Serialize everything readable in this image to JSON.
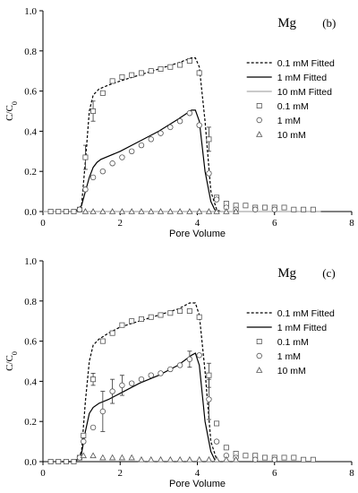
{
  "chart_data": [
    {
      "type": "line",
      "title": "Mg",
      "panel_label": "(b)",
      "xlabel": "Pore Volume",
      "ylabel": "C/C",
      "ylabel_sub": "0",
      "xlim": [
        0,
        8
      ],
      "ylim": [
        0,
        1.0
      ],
      "xticks": [
        "0",
        "2",
        "4",
        "6",
        "8"
      ],
      "yticks": [
        "0.0",
        "0.2",
        "0.4",
        "0.6",
        "0.8",
        "1.0"
      ],
      "legend_position": "right",
      "legend": [
        {
          "label": "0.1 mM Fitted",
          "kind": "line",
          "style": "dashed",
          "color": "#000000"
        },
        {
          "label": "1 mM Fitted",
          "kind": "line",
          "style": "solid",
          "color": "#000000"
        },
        {
          "label": "10 mM Fitted",
          "kind": "line",
          "style": "solid",
          "color": "#aaaaaa"
        },
        {
          "label": "0.1 mM",
          "kind": "marker",
          "marker": "square"
        },
        {
          "label": "1 mM",
          "kind": "marker",
          "marker": "circle"
        },
        {
          "label": "10 mM",
          "kind": "marker",
          "marker": "triangle"
        }
      ],
      "fitted": [
        {
          "name": "0.1 mM Fitted",
          "style": "dashed",
          "color": "#000000",
          "x": [
            0.5,
            0.85,
            1.0,
            1.1,
            1.2,
            1.3,
            1.45,
            1.7,
            2.0,
            2.5,
            3.0,
            3.5,
            3.85,
            3.95,
            4.05,
            4.2,
            4.35,
            4.5,
            4.6
          ],
          "y": [
            0,
            0,
            0.03,
            0.25,
            0.5,
            0.58,
            0.61,
            0.63,
            0.65,
            0.68,
            0.71,
            0.74,
            0.765,
            0.765,
            0.72,
            0.45,
            0.1,
            0.01,
            0
          ]
        },
        {
          "name": "1 mM Fitted",
          "style": "solid",
          "color": "#000000",
          "x": [
            0.5,
            0.85,
            1.0,
            1.1,
            1.2,
            1.3,
            1.4,
            1.5,
            2.0,
            2.5,
            3.0,
            3.5,
            3.85,
            3.95,
            4.05,
            4.2,
            4.35,
            4.45,
            4.55
          ],
          "y": [
            0,
            0,
            0.03,
            0.1,
            0.17,
            0.22,
            0.245,
            0.26,
            0.3,
            0.35,
            0.4,
            0.46,
            0.505,
            0.505,
            0.45,
            0.2,
            0.05,
            0.01,
            0
          ]
        },
        {
          "name": "10 mM Fitted",
          "style": "solid",
          "color": "#aaaaaa",
          "x": [
            0,
            7.2
          ],
          "y": [
            0,
            0
          ]
        }
      ],
      "markers": [
        {
          "name": "0.1 mM",
          "marker": "square",
          "points": [
            [
              0.2,
              0
            ],
            [
              0.4,
              0
            ],
            [
              0.6,
              0
            ],
            [
              0.8,
              0
            ],
            [
              0.95,
              0.01
            ],
            [
              1.1,
              0.27
            ],
            [
              1.3,
              0.5
            ],
            [
              1.55,
              0.59
            ],
            [
              1.8,
              0.65
            ],
            [
              2.05,
              0.67
            ],
            [
              2.3,
              0.68
            ],
            [
              2.55,
              0.69
            ],
            [
              2.8,
              0.7
            ],
            [
              3.05,
              0.71
            ],
            [
              3.3,
              0.72
            ],
            [
              3.55,
              0.73
            ],
            [
              3.8,
              0.75
            ],
            [
              4.05,
              0.69
            ],
            [
              4.3,
              0.36
            ],
            [
              4.5,
              0.07
            ],
            [
              4.75,
              0.04
            ],
            [
              5.0,
              0.03
            ],
            [
              5.25,
              0.03
            ],
            [
              5.5,
              0.02
            ],
            [
              5.75,
              0.02
            ],
            [
              6.0,
              0.02
            ],
            [
              6.25,
              0.02
            ],
            [
              6.5,
              0.01
            ],
            [
              6.75,
              0.01
            ],
            [
              7.0,
              0.01
            ]
          ],
          "errorbars": [
            [
              1.1,
              0.27,
              0.06
            ],
            [
              1.3,
              0.5,
              0.05
            ],
            [
              4.3,
              0.36,
              0.06
            ]
          ]
        },
        {
          "name": "1 mM",
          "marker": "circle",
          "points": [
            [
              0.95,
              0.01
            ],
            [
              1.1,
              0.11
            ],
            [
              1.3,
              0.17
            ],
            [
              1.55,
              0.2
            ],
            [
              1.8,
              0.24
            ],
            [
              2.05,
              0.27
            ],
            [
              2.3,
              0.3
            ],
            [
              2.55,
              0.33
            ],
            [
              2.8,
              0.36
            ],
            [
              3.05,
              0.39
            ],
            [
              3.3,
              0.42
            ],
            [
              3.55,
              0.45
            ],
            [
              3.8,
              0.49
            ],
            [
              4.05,
              0.43
            ],
            [
              4.3,
              0.19
            ],
            [
              4.5,
              0.06
            ],
            [
              4.75,
              0.02
            ],
            [
              5.0,
              0.01
            ],
            [
              5.5,
              0.01
            ],
            [
              6.0,
              0.01
            ]
          ],
          "errorbars": []
        },
        {
          "name": "10 mM",
          "marker": "triangle",
          "points": [
            [
              1.1,
              0
            ],
            [
              1.3,
              0
            ],
            [
              1.55,
              0
            ],
            [
              1.8,
              0
            ],
            [
              2.05,
              0
            ],
            [
              2.3,
              0
            ],
            [
              2.55,
              0
            ],
            [
              2.8,
              0
            ],
            [
              3.05,
              0
            ],
            [
              3.3,
              0
            ],
            [
              3.55,
              0
            ],
            [
              3.8,
              0
            ],
            [
              4.05,
              0
            ],
            [
              4.3,
              0
            ],
            [
              4.5,
              0
            ],
            [
              4.75,
              0
            ],
            [
              5.0,
              0
            ]
          ],
          "errorbars": []
        }
      ]
    },
    {
      "type": "line",
      "title": "Mg",
      "panel_label": "(c)",
      "xlabel": "Pore Volume",
      "ylabel": "C/C",
      "ylabel_sub": "0",
      "xlim": [
        0,
        8
      ],
      "ylim": [
        0,
        1.0
      ],
      "xticks": [
        "0",
        "2",
        "4",
        "6",
        "8"
      ],
      "yticks": [
        "0.0",
        "0.2",
        "0.4",
        "0.6",
        "0.8",
        "1.0"
      ],
      "legend_position": "right",
      "legend": [
        {
          "label": "0.1 mM Fitted",
          "kind": "line",
          "style": "dashed",
          "color": "#000000"
        },
        {
          "label": "1 mM Fitted",
          "kind": "line",
          "style": "solid",
          "color": "#000000"
        },
        {
          "label": "0.1 mM",
          "kind": "marker",
          "marker": "square"
        },
        {
          "label": "1 mM",
          "kind": "marker",
          "marker": "circle"
        },
        {
          "label": "10 mM",
          "kind": "marker",
          "marker": "triangle"
        }
      ],
      "fitted": [
        {
          "name": "0.1 mM Fitted",
          "style": "dashed",
          "color": "#000000",
          "x": [
            0.5,
            0.85,
            1.0,
            1.1,
            1.2,
            1.3,
            1.45,
            1.7,
            2.0,
            2.5,
            3.0,
            3.5,
            3.8,
            3.95,
            4.05,
            4.2,
            4.35,
            4.5,
            4.6
          ],
          "y": [
            0,
            0,
            0.05,
            0.3,
            0.5,
            0.58,
            0.61,
            0.64,
            0.67,
            0.7,
            0.73,
            0.76,
            0.79,
            0.79,
            0.73,
            0.45,
            0.1,
            0.01,
            0
          ]
        },
        {
          "name": "1 mM Fitted",
          "style": "solid",
          "color": "#000000",
          "x": [
            0.5,
            0.85,
            1.0,
            1.1,
            1.2,
            1.3,
            1.45,
            1.7,
            2.0,
            2.5,
            3.0,
            3.5,
            3.85,
            3.95,
            4.05,
            4.2,
            4.35,
            4.45,
            4.55
          ],
          "y": [
            0,
            0,
            0.04,
            0.15,
            0.24,
            0.27,
            0.29,
            0.31,
            0.34,
            0.39,
            0.43,
            0.48,
            0.53,
            0.54,
            0.48,
            0.2,
            0.05,
            0.01,
            0
          ]
        }
      ],
      "markers": [
        {
          "name": "0.1 mM",
          "marker": "square",
          "points": [
            [
              0.2,
              0
            ],
            [
              0.4,
              0
            ],
            [
              0.6,
              0
            ],
            [
              0.8,
              0
            ],
            [
              0.95,
              0.02
            ],
            [
              1.05,
              0.13
            ],
            [
              1.3,
              0.41
            ],
            [
              1.55,
              0.6
            ],
            [
              1.8,
              0.64
            ],
            [
              2.05,
              0.68
            ],
            [
              2.3,
              0.7
            ],
            [
              2.55,
              0.71
            ],
            [
              2.8,
              0.72
            ],
            [
              3.05,
              0.73
            ],
            [
              3.3,
              0.74
            ],
            [
              3.55,
              0.75
            ],
            [
              3.8,
              0.75
            ],
            [
              4.05,
              0.72
            ],
            [
              4.3,
              0.43
            ],
            [
              4.5,
              0.19
            ],
            [
              4.75,
              0.07
            ],
            [
              5.0,
              0.04
            ],
            [
              5.25,
              0.03
            ],
            [
              5.5,
              0.03
            ],
            [
              5.75,
              0.02
            ],
            [
              6.0,
              0.02
            ],
            [
              6.25,
              0.02
            ],
            [
              6.5,
              0.02
            ],
            [
              6.75,
              0.01
            ],
            [
              7.0,
              0.01
            ]
          ],
          "errorbars": [
            [
              1.3,
              0.41,
              0.03
            ],
            [
              4.3,
              0.43,
              0.06
            ]
          ]
        },
        {
          "name": "1 mM",
          "marker": "circle",
          "points": [
            [
              0.95,
              0.02
            ],
            [
              1.05,
              0.1
            ],
            [
              1.3,
              0.17
            ],
            [
              1.55,
              0.25
            ],
            [
              1.8,
              0.35
            ],
            [
              2.05,
              0.38
            ],
            [
              2.3,
              0.39
            ],
            [
              2.55,
              0.41
            ],
            [
              2.8,
              0.43
            ],
            [
              3.05,
              0.44
            ],
            [
              3.3,
              0.46
            ],
            [
              3.55,
              0.48
            ],
            [
              3.8,
              0.51
            ],
            [
              4.05,
              0.53
            ],
            [
              4.3,
              0.31
            ],
            [
              4.5,
              0.1
            ],
            [
              4.75,
              0.03
            ],
            [
              5.0,
              0.02
            ],
            [
              5.5,
              0.01
            ],
            [
              6.0,
              0.01
            ]
          ],
          "errorbars": [
            [
              1.55,
              0.25,
              0.1
            ],
            [
              1.8,
              0.35,
              0.06
            ],
            [
              2.05,
              0.38,
              0.05
            ],
            [
              3.8,
              0.51,
              0.04
            ],
            [
              4.3,
              0.31,
              0.1
            ]
          ]
        },
        {
          "name": "10 mM",
          "marker": "triangle",
          "points": [
            [
              1.05,
              0.03
            ],
            [
              1.3,
              0.03
            ],
            [
              1.55,
              0.02
            ],
            [
              1.8,
              0.02
            ],
            [
              2.05,
              0.02
            ],
            [
              2.3,
              0.02
            ],
            [
              2.55,
              0.01
            ],
            [
              2.8,
              0.01
            ],
            [
              3.05,
              0.01
            ],
            [
              3.3,
              0.01
            ],
            [
              3.55,
              0.01
            ],
            [
              3.8,
              0.01
            ],
            [
              4.05,
              0.01
            ],
            [
              4.3,
              0.01
            ],
            [
              4.5,
              0.01
            ],
            [
              4.75,
              0.01
            ],
            [
              5.0,
              0.01
            ]
          ],
          "errorbars": []
        }
      ]
    }
  ]
}
